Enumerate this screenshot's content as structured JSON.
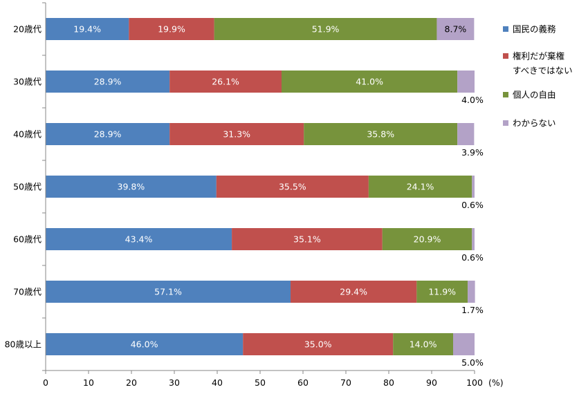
{
  "chart_data": {
    "type": "bar",
    "orientation": "horizontal",
    "stacked": true,
    "categories": [
      "20歳代",
      "30歳代",
      "40歳代",
      "50歳代",
      "60歳代",
      "70歳代",
      "80歳以上"
    ],
    "series": [
      {
        "name": "国民の義務",
        "color": "#4f81bd",
        "values": [
          19.4,
          28.9,
          28.9,
          39.8,
          43.4,
          57.1,
          46.0
        ]
      },
      {
        "name": "権利だが棄権すべきではない",
        "name_lines": [
          "権利だが棄権",
          "すべきではない"
        ],
        "color": "#c0504d",
        "values": [
          19.9,
          26.1,
          31.3,
          35.5,
          35.1,
          29.4,
          35.0
        ]
      },
      {
        "name": "個人の自由",
        "color": "#77933c",
        "values": [
          51.9,
          41.0,
          35.8,
          24.1,
          20.9,
          11.9,
          14.0
        ]
      },
      {
        "name": "わからない",
        "color": "#b3a2c7",
        "values": [
          8.7,
          4.0,
          3.9,
          0.6,
          0.6,
          1.7,
          5.0
        ]
      }
    ],
    "xlim": [
      0,
      100
    ],
    "xticks": [
      0,
      10,
      20,
      30,
      40,
      50,
      60,
      70,
      80,
      90,
      100
    ],
    "xunit": "(%)",
    "legend_position": "right",
    "grid": false
  }
}
